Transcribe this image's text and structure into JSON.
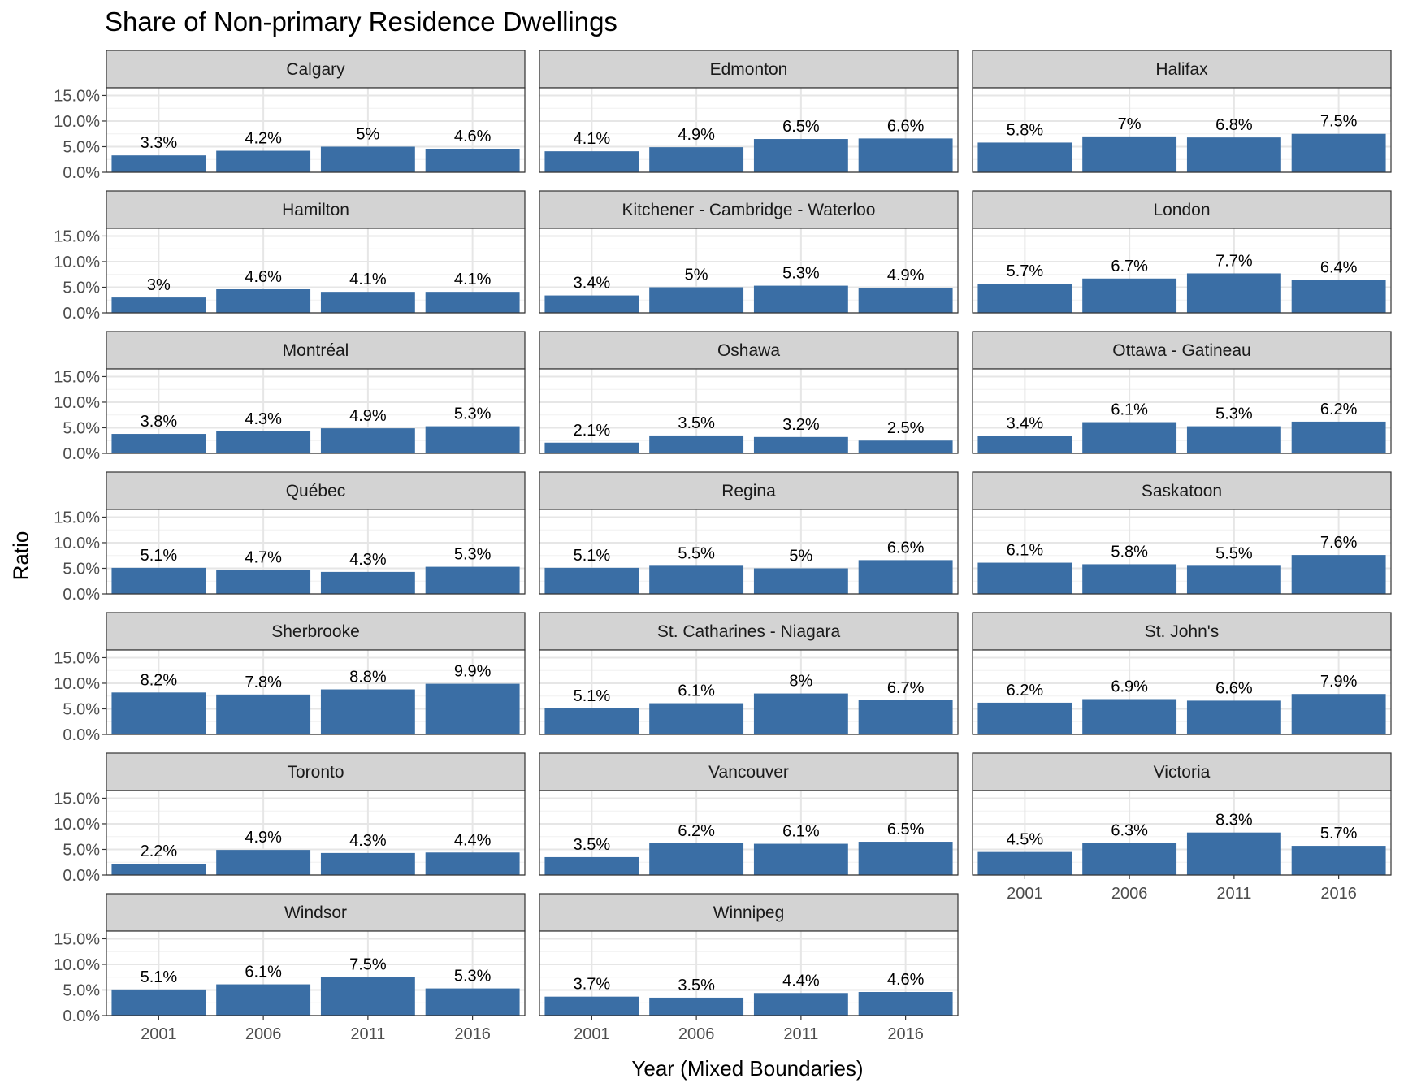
{
  "chart_data": {
    "type": "bar",
    "title": "Share of Non-primary Residence Dwellings",
    "xlabel": "Year (Mixed Boundaries)",
    "ylabel": "Ratio",
    "categories": [
      "2001",
      "2006",
      "2011",
      "2016"
    ],
    "y_ticks": [
      "0.0%",
      "5.0%",
      "10.0%",
      "15.0%"
    ],
    "ylim": [
      0,
      0.165
    ],
    "grid": true,
    "layout": "facet-wrap-3-columns",
    "bar_color": "#3A6EA5",
    "strip_color": "#D3D3D3",
    "panels": [
      {
        "name": "Calgary",
        "values": [
          0.033,
          0.042,
          0.05,
          0.046
        ],
        "labels": [
          "3.3%",
          "4.2%",
          "5%",
          "4.6%"
        ]
      },
      {
        "name": "Edmonton",
        "values": [
          0.041,
          0.049,
          0.065,
          0.066
        ],
        "labels": [
          "4.1%",
          "4.9%",
          "6.5%",
          "6.6%"
        ]
      },
      {
        "name": "Halifax",
        "values": [
          0.058,
          0.07,
          0.068,
          0.075
        ],
        "labels": [
          "5.8%",
          "7%",
          "6.8%",
          "7.5%"
        ]
      },
      {
        "name": "Hamilton",
        "values": [
          0.03,
          0.046,
          0.041,
          0.041
        ],
        "labels": [
          "3%",
          "4.6%",
          "4.1%",
          "4.1%"
        ]
      },
      {
        "name": "Kitchener - Cambridge - Waterloo",
        "values": [
          0.034,
          0.05,
          0.053,
          0.049
        ],
        "labels": [
          "3.4%",
          "5%",
          "5.3%",
          "4.9%"
        ]
      },
      {
        "name": "London",
        "values": [
          0.057,
          0.067,
          0.077,
          0.064
        ],
        "labels": [
          "5.7%",
          "6.7%",
          "7.7%",
          "6.4%"
        ]
      },
      {
        "name": "Montréal",
        "values": [
          0.038,
          0.043,
          0.049,
          0.053
        ],
        "labels": [
          "3.8%",
          "4.3%",
          "4.9%",
          "5.3%"
        ]
      },
      {
        "name": "Oshawa",
        "values": [
          0.021,
          0.035,
          0.032,
          0.025
        ],
        "labels": [
          "2.1%",
          "3.5%",
          "3.2%",
          "2.5%"
        ]
      },
      {
        "name": "Ottawa - Gatineau",
        "values": [
          0.034,
          0.061,
          0.053,
          0.062
        ],
        "labels": [
          "3.4%",
          "6.1%",
          "5.3%",
          "6.2%"
        ]
      },
      {
        "name": "Québec",
        "values": [
          0.051,
          0.047,
          0.043,
          0.053
        ],
        "labels": [
          "5.1%",
          "4.7%",
          "4.3%",
          "5.3%"
        ]
      },
      {
        "name": "Regina",
        "values": [
          0.051,
          0.055,
          0.05,
          0.066
        ],
        "labels": [
          "5.1%",
          "5.5%",
          "5%",
          "6.6%"
        ]
      },
      {
        "name": "Saskatoon",
        "values": [
          0.061,
          0.058,
          0.055,
          0.076
        ],
        "labels": [
          "6.1%",
          "5.8%",
          "5.5%",
          "7.6%"
        ]
      },
      {
        "name": "Sherbrooke",
        "values": [
          0.082,
          0.078,
          0.088,
          0.099
        ],
        "labels": [
          "8.2%",
          "7.8%",
          "8.8%",
          "9.9%"
        ]
      },
      {
        "name": "St. Catharines - Niagara",
        "values": [
          0.051,
          0.061,
          0.08,
          0.067
        ],
        "labels": [
          "5.1%",
          "6.1%",
          "8%",
          "6.7%"
        ]
      },
      {
        "name": "St. John's",
        "values": [
          0.062,
          0.069,
          0.066,
          0.079
        ],
        "labels": [
          "6.2%",
          "6.9%",
          "6.6%",
          "7.9%"
        ]
      },
      {
        "name": "Toronto",
        "values": [
          0.022,
          0.049,
          0.043,
          0.044
        ],
        "labels": [
          "2.2%",
          "4.9%",
          "4.3%",
          "4.4%"
        ]
      },
      {
        "name": "Vancouver",
        "values": [
          0.035,
          0.062,
          0.061,
          0.065
        ],
        "labels": [
          "3.5%",
          "6.2%",
          "6.1%",
          "6.5%"
        ]
      },
      {
        "name": "Victoria",
        "values": [
          0.045,
          0.063,
          0.083,
          0.057
        ],
        "labels": [
          "4.5%",
          "6.3%",
          "8.3%",
          "5.7%"
        ]
      },
      {
        "name": "Windsor",
        "values": [
          0.051,
          0.061,
          0.075,
          0.053
        ],
        "labels": [
          "5.1%",
          "6.1%",
          "7.5%",
          "5.3%"
        ]
      },
      {
        "name": "Winnipeg",
        "values": [
          0.037,
          0.035,
          0.044,
          0.046
        ],
        "labels": [
          "3.7%",
          "3.5%",
          "4.4%",
          "4.6%"
        ]
      }
    ]
  }
}
